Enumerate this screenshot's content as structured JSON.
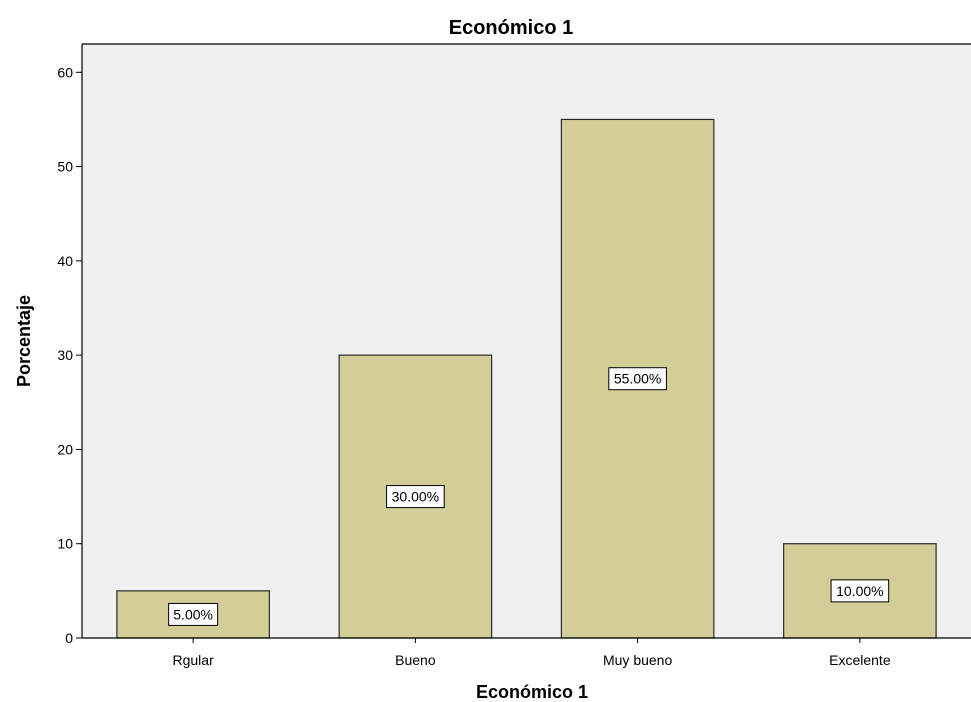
{
  "chart_data": {
    "type": "bar",
    "title": "Económico 1",
    "xlabel": "Económico 1",
    "ylabel": "Porcentaje",
    "categories": [
      "Rgular",
      "Bueno",
      "Muy bueno",
      "Excelente"
    ],
    "values": [
      5,
      30,
      55,
      10
    ],
    "data_labels": [
      "5.00%",
      "30.00%",
      "55.00%",
      "10.00%"
    ],
    "ylim": [
      0,
      63
    ],
    "yticks": [
      0,
      10,
      20,
      30,
      40,
      50,
      60
    ],
    "grid": false,
    "legend": "none",
    "colors": {
      "bar_fill": "#d3cd97",
      "bar_stroke": "#2b2b2b",
      "plot_background": "#f0f0f0",
      "axis": "#000000",
      "label_box_fill": "#ffffff"
    }
  }
}
